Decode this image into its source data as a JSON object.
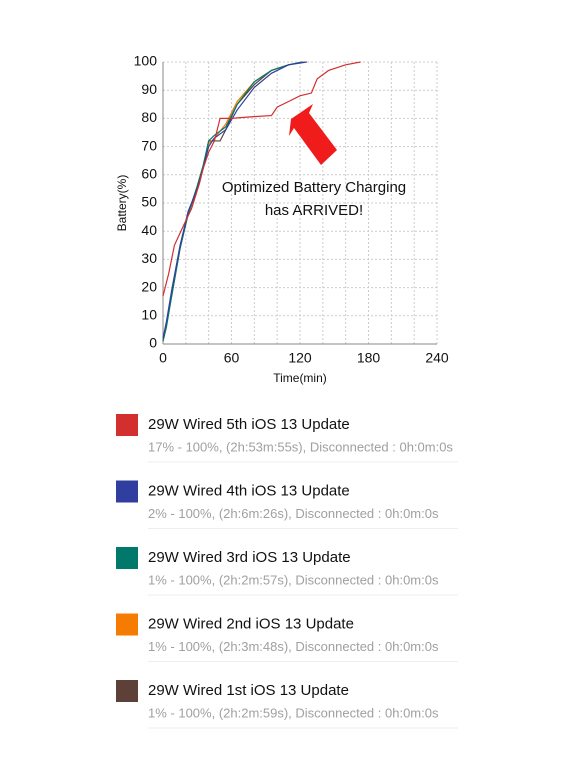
{
  "chart_data": {
    "type": "line",
    "xlabel": "Time(min)",
    "ylabel": "Battery(%)",
    "annotation": [
      "Optimized Battery Charging",
      "has   ARRIVED!"
    ],
    "xlim": [
      0,
      240
    ],
    "xticks": [
      0,
      60,
      120,
      180,
      240
    ],
    "xgrid": [
      0,
      20,
      40,
      60,
      80,
      100,
      120,
      140,
      160,
      180,
      200,
      220,
      240
    ],
    "ylim": [
      0,
      100
    ],
    "yticks": [
      0,
      10,
      20,
      30,
      40,
      50,
      60,
      70,
      80,
      90,
      100
    ],
    "grid": true,
    "series": [
      {
        "name": "29W Wired 5th iOS 13 Update",
        "description": "17% - 100%, (2h:53m:55s), Disconnected : 0h:0m:0s",
        "color": "#d32f2f",
        "x": [
          0,
          5,
          10,
          18,
          25,
          32,
          35,
          40,
          45,
          50,
          60,
          75,
          95,
          100,
          110,
          120,
          130,
          135,
          145,
          160,
          173
        ],
        "values": [
          17,
          25,
          35,
          42,
          48,
          57,
          62,
          68,
          72,
          80,
          80,
          80.5,
          81,
          84,
          86,
          88,
          89,
          94,
          97,
          99,
          100
        ]
      },
      {
        "name": "29W Wired 4th iOS 13 Update",
        "description": "2% - 100%, (2h:6m:26s), Disconnected : 0h:0m:0s",
        "color": "#303f9f",
        "x": [
          0,
          3,
          8,
          15,
          22,
          30,
          35,
          40,
          45,
          55,
          65,
          80,
          95,
          110,
          126
        ],
        "values": [
          2,
          8,
          20,
          35,
          47,
          55,
          62,
          70,
          73,
          76,
          83,
          91,
          96,
          99,
          100
        ]
      },
      {
        "name": "29W Wired 3rd iOS 13 Update",
        "description": "1% - 100%, (2h:2m:57s), Disconnected : 0h:0m:0s",
        "color": "#00796b",
        "x": [
          0,
          3,
          8,
          15,
          22,
          30,
          35,
          40,
          45,
          55,
          65,
          80,
          95,
          110,
          122
        ],
        "values": [
          1,
          6,
          18,
          34,
          46,
          56,
          63,
          72,
          74,
          77,
          85,
          93,
          97,
          99,
          100
        ]
      },
      {
        "name": "29W Wired 2nd iOS 13 Update",
        "description": "1% - 100%, (2h:3m:48s), Disconnected : 0h:0m:0s",
        "color": "#f57c00",
        "x": [
          0,
          3,
          8,
          15,
          22,
          30,
          35,
          40,
          45,
          55,
          65,
          80,
          95,
          110,
          124
        ],
        "values": [
          1,
          7,
          19,
          35,
          46,
          56,
          63,
          71,
          73,
          78,
          86,
          93,
          97,
          99,
          100
        ]
      },
      {
        "name": "29W Wired 1st iOS 13 Update",
        "description": "1% - 100%, (2h:2m:59s), Disconnected : 0h:0m:0s",
        "color": "#5d4037",
        "x": [
          0,
          3,
          8,
          15,
          22,
          30,
          35,
          40,
          45,
          50,
          55,
          65,
          80,
          95,
          110,
          123
        ],
        "values": [
          1,
          7,
          18,
          34,
          46,
          55,
          62,
          72,
          72,
          72,
          76,
          85,
          92,
          97,
          99,
          100
        ]
      }
    ]
  }
}
